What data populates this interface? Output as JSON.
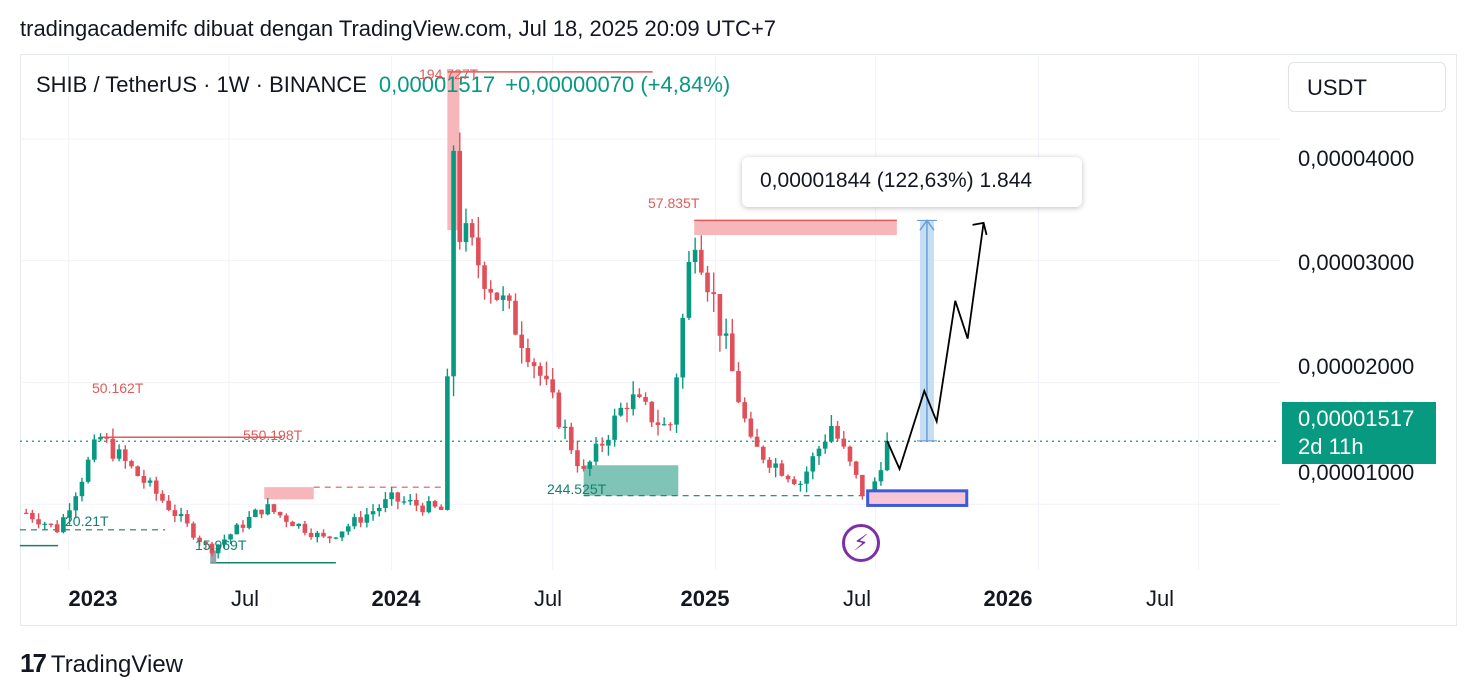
{
  "header": "tradingacademifc dibuat dengan TradingView.com, Jul 18, 2025 20:09 UTC+7",
  "symbol": {
    "name": "SHIB / TetherUS · 1W · BINANCE",
    "price": "0,00001517",
    "change": "+0,00000070 (+4,84%)"
  },
  "unit_label": "USDT",
  "measure_tooltip": "0,00001844 (122,63%) 1.844",
  "price_badge": {
    "price": "0,00001517",
    "countdown": "2d 11h"
  },
  "footer_logo": "TradingView",
  "colors": {
    "up": "#089981",
    "down": "#f23645",
    "up_body": "#089981",
    "down_body": "#e0505a",
    "supply_zone": "#f7b6b9",
    "demand_zone": "#7fc4b6",
    "measure": "#bcd8ef",
    "target_box": "#3b5bdb"
  },
  "icons": {
    "flash": "lightning-icon",
    "logo": "tradingview-logo-icon"
  },
  "chart_data": {
    "type": "candlestick",
    "x_tick_labels": [
      "2023",
      "Jul",
      "2024",
      "Jul",
      "2025",
      "Jul",
      "2026",
      "Jul"
    ],
    "y_tick_labels": [
      "0,00004000",
      "0,00003000",
      "0,00002000",
      "0,00001000"
    ],
    "y_ticks": [
      4e-05,
      3e-05,
      2e-05,
      1e-05
    ],
    "ylim": [
      4.6e-06,
      4.68e-05
    ],
    "xlim": [
      "2022-11-07",
      "2026-10-01"
    ],
    "current_price": 1.517e-05,
    "price_labels": [
      "194.727T",
      "57.835T",
      "50.162T",
      "550.198T",
      "20.21T",
      "15.969T",
      "244.525T"
    ],
    "key_points": [
      {
        "date": "2022-11-14",
        "price": 9.3e-06
      },
      {
        "date": "2022-12-20",
        "price": 7.9e-06
      },
      {
        "date": "2023-02-05",
        "price": 1.55e-05
      },
      {
        "date": "2023-04-15",
        "price": 1.05e-05
      },
      {
        "date": "2023-06-10",
        "price": 6.2e-06
      },
      {
        "date": "2023-08-10",
        "price": 9.8e-06
      },
      {
        "date": "2023-10-18",
        "price": 7.1e-06
      },
      {
        "date": "2024-01-01",
        "price": 1.04e-05
      },
      {
        "date": "2024-02-26",
        "price": 9.5e-06
      },
      {
        "date": "2024-03-04",
        "price": 1.95e-05
      },
      {
        "date": "2024-03-05",
        "price": 4.55e-05
      },
      {
        "date": "2024-03-18",
        "price": 3.25e-05
      },
      {
        "date": "2024-06-01",
        "price": 2.32e-05
      },
      {
        "date": "2024-08-05",
        "price": 1.25e-05
      },
      {
        "date": "2024-09-25",
        "price": 1.88e-05
      },
      {
        "date": "2024-11-10",
        "price": 1.6e-05
      },
      {
        "date": "2024-12-08",
        "price": 3.3e-05
      },
      {
        "date": "2025-02-10",
        "price": 1.48e-05
      },
      {
        "date": "2025-04-07",
        "price": 1.18e-05
      },
      {
        "date": "2025-05-12",
        "price": 1.65e-05
      },
      {
        "date": "2025-06-22",
        "price": 1e-05
      },
      {
        "date": "2025-07-14",
        "price": 1.517e-05
      }
    ],
    "projection_path": [
      {
        "date": "2025-07-14",
        "price": 1.52e-05
      },
      {
        "date": "2025-07-28",
        "price": 1.29e-05
      },
      {
        "date": "2025-08-25",
        "price": 1.93e-05
      },
      {
        "date": "2025-09-08",
        "price": 1.68e-05
      },
      {
        "date": "2025-09-29",
        "price": 2.67e-05
      },
      {
        "date": "2025-10-13",
        "price": 2.36e-05
      },
      {
        "date": "2025-10-31",
        "price": 3.31e-05
      }
    ]
  }
}
